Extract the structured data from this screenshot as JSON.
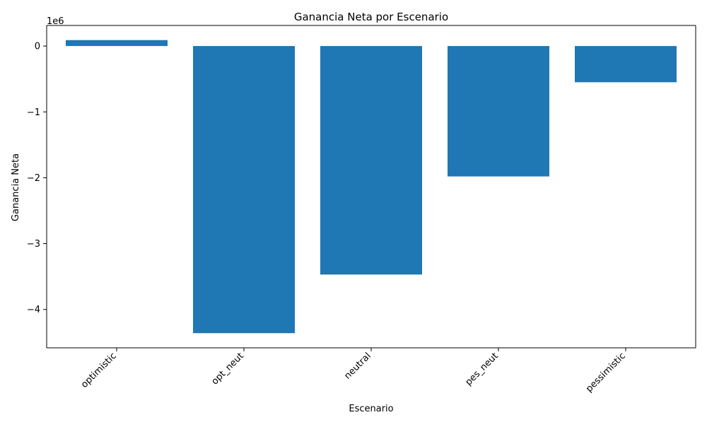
{
  "chart_data": {
    "type": "bar",
    "title": "Ganancia Neta por Escenario",
    "xlabel": "Escenario",
    "ylabel": "Ganancia Neta",
    "y_offset_label": "1e6",
    "categories": [
      "optimistic",
      "opt_neut",
      "neutral",
      "pes_neut",
      "pessimistic"
    ],
    "values": [
      90000,
      -4360000,
      -3470000,
      -1980000,
      -550000
    ],
    "ylim": [
      -4582500,
      312500
    ],
    "yticks": [
      0,
      -1000000,
      -2000000,
      -3000000,
      -4000000
    ],
    "ytick_labels": [
      "0",
      "−1",
      "−2",
      "−3",
      "−4"
    ],
    "grid": false,
    "legend": "none",
    "bar_color": "#1f77b4"
  }
}
